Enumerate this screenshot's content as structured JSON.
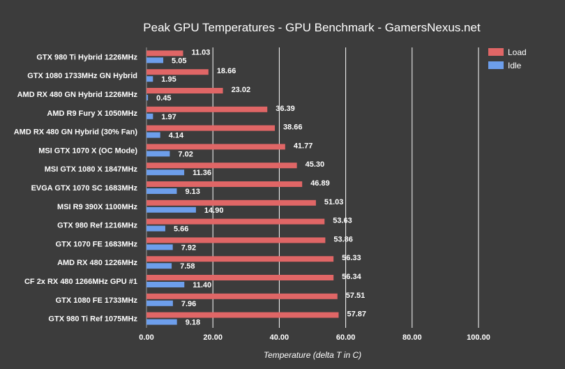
{
  "chart_data": {
    "type": "bar",
    "orientation": "horizontal",
    "title": "Peak GPU Temperatures - GPU Benchmark - GamersNexus.net",
    "xlabel": "Temperature (delta T in C)",
    "ylabel": "",
    "xlim": [
      0,
      100
    ],
    "xticks": [
      "0.00",
      "20.00",
      "40.00",
      "60.00",
      "80.00",
      "100.00"
    ],
    "grid": "vertical",
    "legend_position": "top-right",
    "categories": [
      "GTX 980 Ti Hybrid 1226MHz",
      "GTX 1080 1733MHz GN Hybrid",
      "AMD RX 480 GN Hybrid 1226MHz",
      "AMD R9 Fury X 1050MHz",
      "AMD RX 480 GN Hybrid (30% Fan)",
      "MSI GTX 1070 X (OC Mode)",
      "MSI GTX 1080 X 1847MHz",
      "EVGA GTX 1070 SC 1683MHz",
      "MSI R9 390X 1100MHz",
      "GTX 980 Ref 1216MHz",
      "GTX 1070 FE 1683MHz",
      "AMD RX 480 1226MHz",
      "CF 2x RX 480 1266MHz GPU #1",
      "GTX 1080 FE 1733MHz",
      "GTX 980 Ti Ref 1075MHz"
    ],
    "series": [
      {
        "name": "Load",
        "color": "#e06666",
        "values": [
          11.03,
          18.66,
          23.02,
          36.39,
          38.66,
          41.77,
          45.3,
          46.89,
          51.03,
          53.63,
          53.86,
          56.33,
          56.34,
          57.51,
          57.87
        ],
        "labels": [
          "11.03",
          "18.66",
          "23.02",
          "36.39",
          "38.66",
          "41.77",
          "45.30",
          "46.89",
          "51.03",
          "53.63",
          "53.86",
          "56.33",
          "56.34",
          "57.51",
          "57.87"
        ]
      },
      {
        "name": "Idle",
        "color": "#6d9eeb",
        "values": [
          5.05,
          1.95,
          0.45,
          1.97,
          4.14,
          7.02,
          11.36,
          9.13,
          14.9,
          5.66,
          7.92,
          7.58,
          11.4,
          7.96,
          9.18
        ],
        "labels": [
          "5.05",
          "1.95",
          "0.45",
          "1.97",
          "4.14",
          "7.02",
          "11.36",
          "9.13",
          "14.90",
          "5.66",
          "7.92",
          "7.58",
          "11.40",
          "7.96",
          "9.18"
        ]
      }
    ]
  }
}
